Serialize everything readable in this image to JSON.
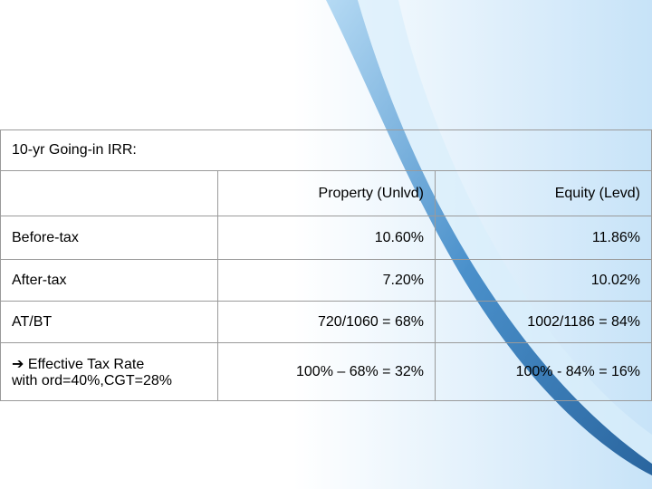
{
  "table": {
    "title": "10-yr Going-in IRR:",
    "header": [
      "Property (Unlvd)",
      "Equity (Levd)"
    ],
    "rows": [
      [
        "Before-tax",
        "10.60%",
        "11.86%"
      ],
      [
        "After-tax",
        "7.20%",
        "10.02%"
      ],
      [
        "AT/BT",
        "720/1060 = 68%",
        "1002/1186 = 84%"
      ],
      [
        [
          "➔ Effective Tax Rate",
          "with ord=40%,CGT=28%"
        ],
        "100% – 68% = 32%",
        "100% - 84% = 16%"
      ]
    ]
  }
}
